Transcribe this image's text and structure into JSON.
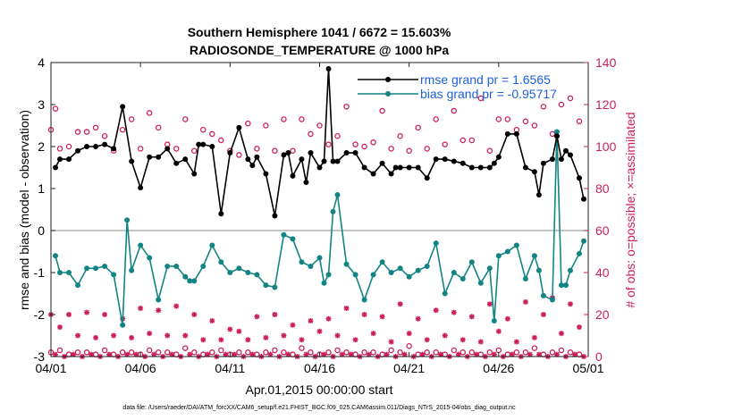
{
  "chart_data": {
    "type": "line",
    "title_line1": "Southern Hemisphere 1041 / 6672 = 15.603%",
    "title_line2": "RADIOSONDE_TEMPERATURE @ 1000 hPa",
    "ylabel_left": "rmse and bias (model - observation)",
    "ylabel_right": "# of obs: o=possible; ×=assimilated",
    "xlabel": "Apr.01,2015 00:00:00 start",
    "footnote": "data file: /Users/raeder/DAI/ATM_forcXX/CAM6_setup/f.e21.FHIST_BGC.f09_025.CAM6assim.011/Diags_NTrS_2015-04/obs_diag_output.nc",
    "xlim": [
      0,
      30
    ],
    "ylim_left": [
      -3,
      4
    ],
    "ylim_right": [
      0,
      140
    ],
    "x_ticks": [
      0,
      5,
      10,
      15,
      20,
      25,
      30
    ],
    "x_tick_labels": [
      "04/01",
      "04/06",
      "04/11",
      "04/16",
      "04/21",
      "04/26",
      "05/01"
    ],
    "y_ticks_left": [
      -3,
      -2,
      -1,
      0,
      1,
      2,
      3,
      4
    ],
    "y_ticks_right": [
      0,
      20,
      40,
      60,
      80,
      100,
      120,
      140
    ],
    "legend": [
      {
        "label": "rmse grand pr = 1.6565",
        "color": "#000000"
      },
      {
        "label": "bias grand pr = -0.95717",
        "color": "#1a8a8a"
      }
    ],
    "colors": {
      "rmse": "#000000",
      "bias": "#138484",
      "counts": "#cc1f5a",
      "legend_text": "#1c5fd6",
      "zero_line": "#a0a0a0"
    },
    "rmse": {
      "x": [
        0.25,
        0.5,
        1,
        1.5,
        2,
        2.5,
        3,
        3.5,
        4,
        4.5,
        5,
        5.5,
        6,
        6.5,
        7,
        7.5,
        8,
        8.25,
        8.5,
        9,
        9.5,
        10,
        10.5,
        11,
        11.25,
        11.5,
        12,
        12.5,
        13,
        13.25,
        13.5,
        14,
        14.25,
        14.5,
        15,
        15.25,
        15.5,
        15.75,
        16,
        16.5,
        17,
        17.5,
        18,
        18.5,
        19,
        19.25,
        19.5,
        20,
        20.5,
        21,
        21.5,
        22,
        22.5,
        23,
        23.5,
        24,
        24.5,
        24.75,
        25,
        25.5,
        26,
        26.5,
        27,
        27.25,
        27.5,
        28,
        28.25,
        28.5,
        28.75,
        29,
        29.5,
        29.75
      ],
      "values": [
        1.5,
        1.7,
        1.7,
        1.9,
        2.0,
        2.0,
        2.05,
        1.95,
        2.95,
        1.65,
        1.02,
        1.75,
        1.75,
        1.95,
        1.6,
        1.7,
        1.35,
        2.05,
        2.05,
        2.0,
        0.4,
        1.85,
        2.45,
        1.7,
        1.55,
        1.75,
        1.35,
        0.35,
        1.8,
        1.85,
        1.3,
        1.7,
        1.15,
        1.85,
        1.5,
        1.65,
        3.85,
        1.65,
        1.65,
        1.85,
        1.85,
        1.5,
        1.35,
        1.6,
        1.35,
        1.5,
        1.5,
        1.5,
        1.5,
        1.25,
        1.7,
        1.7,
        1.65,
        1.6,
        1.5,
        1.5,
        1.5,
        1.6,
        1.75,
        2.3,
        2.3,
        1.5,
        1.4,
        0.85,
        1.6,
        1.7,
        2.25,
        1.7,
        1.9,
        1.8,
        1.25,
        0.75
      ]
    },
    "bias": {
      "x": [
        0.25,
        0.5,
        1,
        1.5,
        2,
        2.5,
        3,
        3.5,
        4,
        4.25,
        4.5,
        5,
        5.5,
        6,
        6.5,
        7,
        7.5,
        7.75,
        8,
        8.5,
        9,
        9.5,
        10,
        10.5,
        11,
        11.5,
        12,
        12.5,
        13,
        13.5,
        14,
        14.5,
        15,
        15.25,
        15.5,
        15.75,
        16,
        16.5,
        17,
        17.5,
        18,
        18.5,
        19,
        19.5,
        20,
        20.5,
        21,
        21.5,
        22,
        22.5,
        23,
        23.5,
        24,
        24.5,
        24.75,
        25,
        25.5,
        26,
        26.5,
        27,
        27.25,
        27.5,
        28,
        28.25,
        28.5,
        28.75,
        29,
        29.5,
        29.75
      ],
      "values": [
        -0.6,
        -1.0,
        -1.0,
        -1.3,
        -0.9,
        -0.9,
        -0.85,
        -1.05,
        -2.25,
        0.25,
        -0.95,
        -0.35,
        -0.65,
        -1.65,
        -0.85,
        -0.85,
        -1.1,
        -1.2,
        -1.2,
        -0.85,
        -0.35,
        -0.75,
        -1.0,
        -0.9,
        -1.0,
        -1.05,
        -1.3,
        -1.35,
        -0.1,
        -0.2,
        -0.75,
        -0.85,
        -0.65,
        -1.25,
        -1.05,
        0.45,
        0.85,
        -0.8,
        -1.05,
        -1.65,
        -1.05,
        -0.75,
        -1.0,
        -0.9,
        -1.1,
        -0.95,
        -0.85,
        -0.3,
        -1.5,
        -1.0,
        -1.15,
        -0.75,
        -1.25,
        -0.9,
        -2.15,
        -0.6,
        -0.5,
        -0.35,
        -1.15,
        -0.6,
        -0.95,
        -1.55,
        -1.65,
        2.35,
        -1.3,
        -1.3,
        -0.95,
        -0.55,
        -0.25
      ]
    },
    "obs_possible": {
      "x": [
        0,
        0.25,
        0.5,
        1,
        1.5,
        2,
        2.5,
        3,
        3.5,
        4,
        4.5,
        5,
        5.5,
        6,
        6.5,
        7,
        7.5,
        8,
        8.5,
        9,
        9.5,
        10,
        10.5,
        11,
        11.5,
        12,
        12.5,
        13,
        13.5,
        14,
        14.5,
        15,
        15.5,
        16,
        16.5,
        17,
        17.5,
        18,
        18.5,
        19,
        19.5,
        20,
        20.5,
        21,
        21.5,
        22,
        22.5,
        23,
        23.5,
        24,
        24.5,
        25,
        25.5,
        26,
        26.5,
        27,
        27.5,
        28,
        28.5,
        29,
        29.5
      ],
      "values": [
        108,
        118,
        99,
        100,
        107,
        107,
        109,
        105,
        98,
        108,
        113,
        99,
        116,
        109,
        101,
        99,
        113,
        98,
        108,
        106,
        103,
        98,
        96,
        111,
        99,
        110,
        98,
        113,
        98,
        113,
        106,
        110,
        101,
        105,
        119,
        101,
        100,
        102,
        117,
        99,
        105,
        98,
        109,
        99,
        113,
        101,
        117,
        103,
        103,
        123,
        98,
        113,
        113,
        108,
        112,
        110,
        119,
        106,
        120,
        123,
        112
      ]
    },
    "obs_assimilated": {
      "x": [
        0,
        0.5,
        1,
        1.5,
        2,
        2.5,
        3,
        3.5,
        4,
        4.5,
        5,
        5.5,
        6,
        6.5,
        7,
        7.5,
        8,
        8.5,
        9,
        9.5,
        10,
        10.5,
        11,
        11.5,
        12,
        12.5,
        13,
        13.5,
        14,
        14.5,
        15,
        15.5,
        16,
        16.5,
        17,
        17.5,
        18,
        18.5,
        19,
        19.5,
        20,
        20.5,
        21,
        21.5,
        22,
        22.5,
        23,
        23.5,
        24,
        24.5,
        25,
        25.5,
        26,
        26.5,
        27,
        27.5,
        28,
        28.5,
        29,
        29.5
      ],
      "values": [
        20,
        14,
        20,
        10,
        21,
        9,
        20,
        10,
        18,
        9,
        23,
        11,
        22,
        10,
        24,
        10,
        20,
        8,
        17,
        8,
        13,
        12,
        8,
        19,
        9,
        20,
        10,
        15,
        8,
        17,
        12,
        18,
        10,
        23,
        8,
        20,
        11,
        19,
        7,
        25,
        11,
        18,
        8,
        22,
        10,
        21,
        8,
        19,
        7,
        25,
        12,
        18,
        7,
        26,
        9,
        20,
        28,
        11,
        25,
        14
      ]
    },
    "obs_bottom_possible": {
      "x": [
        0,
        0.5,
        1,
        1.5,
        2,
        2.5,
        3,
        3.5,
        4,
        4.5,
        5,
        5.5,
        6,
        6.5,
        7,
        7.5,
        8,
        8.5,
        9,
        9.5,
        10,
        10.5,
        11,
        11.5,
        12,
        12.5,
        13,
        13.5,
        14,
        14.5,
        15,
        15.5,
        16,
        16.5,
        17,
        17.5,
        18,
        18.5,
        19,
        19.5,
        20,
        20.5,
        21,
        21.5,
        22,
        22.5,
        23,
        23.5,
        24,
        24.5,
        25,
        25.5,
        26,
        26.5,
        27,
        27.5,
        28,
        28.5,
        29,
        29.5
      ],
      "values": [
        2,
        3,
        1,
        2,
        2,
        1,
        3,
        1,
        2,
        2,
        1,
        3,
        2,
        2,
        1,
        4,
        2,
        1,
        2,
        3,
        1,
        2,
        2,
        1,
        2,
        3,
        2,
        1,
        4,
        2,
        1,
        2,
        3,
        2,
        1,
        2,
        2,
        1,
        3,
        2,
        5,
        1,
        2,
        2,
        1,
        3,
        2,
        2,
        1,
        2,
        3,
        1,
        2,
        2,
        4,
        1,
        2,
        3,
        2,
        1
      ]
    },
    "obs_bottom_assimilated": {
      "x": [
        0.25,
        0.75,
        1.25,
        1.75,
        2.25,
        2.75,
        3.25,
        3.75,
        4.25,
        4.75,
        5.25,
        5.75,
        6.25,
        6.75,
        7.25,
        7.75,
        8.25,
        8.75,
        9.25,
        9.75,
        10.25,
        10.75,
        11.25,
        11.75,
        12.25,
        12.75,
        13.25,
        13.75,
        14.25,
        14.75,
        15.25,
        15.75,
        16.25,
        16.75,
        17.25,
        17.75,
        18.25,
        18.75,
        19.25,
        19.75,
        20.25,
        20.75,
        21.25,
        21.75,
        22.25,
        22.75,
        23.25,
        23.75,
        24.25,
        24.75,
        25.25,
        25.75,
        26.25,
        26.75,
        27.25,
        27.75,
        28.25,
        28.75,
        29.25,
        29.75
      ],
      "values": [
        1,
        0,
        1,
        0,
        1,
        0,
        1,
        0,
        1,
        1,
        0,
        1,
        0,
        1,
        0,
        1,
        0,
        1,
        0,
        1,
        1,
        0,
        1,
        0,
        1,
        0,
        1,
        0,
        1,
        0,
        1,
        0,
        1,
        1,
        0,
        1,
        0,
        1,
        0,
        1,
        0,
        1,
        0,
        1,
        0,
        1,
        0,
        1,
        0,
        1,
        0,
        1,
        0,
        1,
        1,
        0,
        1,
        0,
        1,
        0
      ]
    }
  }
}
